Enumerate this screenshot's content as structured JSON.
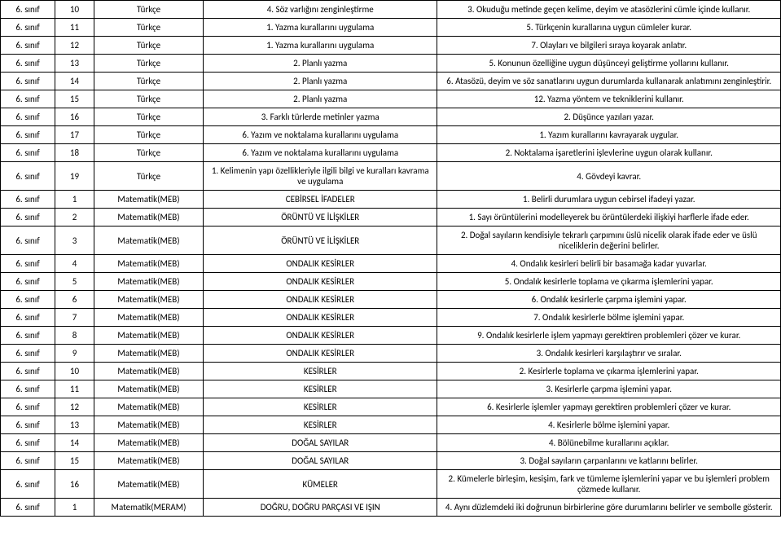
{
  "rows": [
    {
      "grade": "6. sınıf",
      "num": "10",
      "subject": "Türkçe",
      "topic": "4. Söz varlığını zenginleştirme",
      "objective": "3. Okuduğu metinde geçen kelime, deyim ve atasözlerini cümle içinde kullanır."
    },
    {
      "grade": "6. sınıf",
      "num": "11",
      "subject": "Türkçe",
      "topic": "1. Yazma kurallarını uygulama",
      "objective": "5. Türkçenin kurallarına uygun cümleler kurar."
    },
    {
      "grade": "6. sınıf",
      "num": "12",
      "subject": "Türkçe",
      "topic": "1. Yazma kurallarını uygulama",
      "objective": "7. Olayları ve bilgileri sıraya koyarak anlatır."
    },
    {
      "grade": "6. sınıf",
      "num": "13",
      "subject": "Türkçe",
      "topic": "2. Planlı yazma",
      "objective": "5. Konunun özelliğine uygun düşünceyi geliştirme yollarını kullanır."
    },
    {
      "grade": "6. sınıf",
      "num": "14",
      "subject": "Türkçe",
      "topic": "2. Planlı yazma",
      "objective": "6. Atasözü, deyim ve söz sanatlarını uygun durumlarda kullanarak anlatımını zenginleştirir."
    },
    {
      "grade": "6. sınıf",
      "num": "15",
      "subject": "Türkçe",
      "topic": "2. Planlı yazma",
      "objective": "12. Yazma yöntem ve tekniklerini kullanır."
    },
    {
      "grade": "6. sınıf",
      "num": "16",
      "subject": "Türkçe",
      "topic": "3. Farklı türlerde metinler yazma",
      "objective": "2. Düşünce yazıları yazar."
    },
    {
      "grade": "6. sınıf",
      "num": "17",
      "subject": "Türkçe",
      "topic": "6. Yazım ve noktalama kurallarını uygulama",
      "objective": "1. Yazım kurallarını kavrayarak uygular."
    },
    {
      "grade": "6. sınıf",
      "num": "18",
      "subject": "Türkçe",
      "topic": "6. Yazım ve noktalama kurallarını uygulama",
      "objective": "2. Noktalama işaretlerini işlevlerine uygun olarak kullanır."
    },
    {
      "grade": "6. sınıf",
      "num": "19",
      "subject": "Türkçe",
      "topic": "1. Kelimenin yapı özellikleriyle ilgili bilgi ve kuralları kavrama ve uygulama",
      "objective": "4. Gövdeyi kavrar."
    },
    {
      "grade": "6. sınıf",
      "num": "1",
      "subject": "Matematik(MEB)",
      "topic": "CEBİRSEL İFADELER",
      "objective": "1. Belirli durumlara uygun cebirsel ifadeyi yazar."
    },
    {
      "grade": "6. sınıf",
      "num": "2",
      "subject": "Matematik(MEB)",
      "topic": "ÖRÜNTÜ VE İLİŞKİLER",
      "objective": "1. Sayı örüntülerini modelleyerek bu örüntülerdeki ilişkiyi harflerle ifade eder."
    },
    {
      "grade": "6. sınıf",
      "num": "3",
      "subject": "Matematik(MEB)",
      "topic": "ÖRÜNTÜ VE İLİŞKİLER",
      "objective": "2. Doğal sayıların kendisiyle tekrarlı çarpımını üslü nicelik olarak ifade eder ve üslü niceliklerin değerini belirler."
    },
    {
      "grade": "6. sınıf",
      "num": "4",
      "subject": "Matematik(MEB)",
      "topic": "ONDALIK KESİRLER",
      "objective": "4. Ondalık kesirleri belirli bir basamağa kadar yuvarlar."
    },
    {
      "grade": "6. sınıf",
      "num": "5",
      "subject": "Matematik(MEB)",
      "topic": "ONDALIK KESİRLER",
      "objective": "5. Ondalık kesirlerle toplama ve çıkarma işlemlerini yapar."
    },
    {
      "grade": "6. sınıf",
      "num": "6",
      "subject": "Matematik(MEB)",
      "topic": "ONDALIK KESİRLER",
      "objective": "6. Ondalık kesirlerle çarpma işlemini yapar."
    },
    {
      "grade": "6. sınıf",
      "num": "7",
      "subject": "Matematik(MEB)",
      "topic": "ONDALIK KESİRLER",
      "objective": "7. Ondalık kesirlerle bölme işlemini yapar."
    },
    {
      "grade": "6. sınıf",
      "num": "8",
      "subject": "Matematik(MEB)",
      "topic": "ONDALIK KESİRLER",
      "objective": "9. Ondalık kesirlerle işlem yapmayı gerektiren problemleri çözer ve kurar."
    },
    {
      "grade": "6. sınıf",
      "num": "9",
      "subject": "Matematik(MEB)",
      "topic": "ONDALIK KESİRLER",
      "objective": "3. Ondalık kesirleri karşılaştırır ve sıralar."
    },
    {
      "grade": "6. sınıf",
      "num": "10",
      "subject": "Matematik(MEB)",
      "topic": "KESİRLER",
      "objective": "2. Kesirlerle toplama ve çıkarma işlemlerini yapar."
    },
    {
      "grade": "6. sınıf",
      "num": "11",
      "subject": "Matematik(MEB)",
      "topic": "KESİRLER",
      "objective": "3. Kesirlerle çarpma işlemini yapar."
    },
    {
      "grade": "6. sınıf",
      "num": "12",
      "subject": "Matematik(MEB)",
      "topic": "KESİRLER",
      "objective": "6. Kesirlerle işlemler yapmayı gerektiren problemleri çözer ve kurar."
    },
    {
      "grade": "6. sınıf",
      "num": "13",
      "subject": "Matematik(MEB)",
      "topic": "KESİRLER",
      "objective": "4. Kesirlerle bölme işlemini yapar."
    },
    {
      "grade": "6. sınıf",
      "num": "14",
      "subject": "Matematik(MEB)",
      "topic": "DOĞAL SAYILAR",
      "objective": "4. Bölünebilme kurallarını açıklar."
    },
    {
      "grade": "6. sınıf",
      "num": "15",
      "subject": "Matematik(MEB)",
      "topic": "DOĞAL SAYILAR",
      "objective": "3. Doğal sayıların çarpanlarını ve katlarını belirler."
    },
    {
      "grade": "6. sınıf",
      "num": "16",
      "subject": "Matematik(MEB)",
      "topic": "KÜMELER",
      "objective": "2. Kümelerle birleşim, kesişim, fark ve tümleme işlemlerini yapar ve bu işlemleri problem çözmede kullanır."
    },
    {
      "grade": "6. sınıf",
      "num": "1",
      "subject": "Matematik(MERAM)",
      "topic": "DOĞRU, DOĞRU PARÇASI VE IŞIN",
      "objective": "4. Aynı düzlemdeki iki doğrunun birbirlerine göre durumlarını belirler ve sembolle gösterir."
    }
  ]
}
